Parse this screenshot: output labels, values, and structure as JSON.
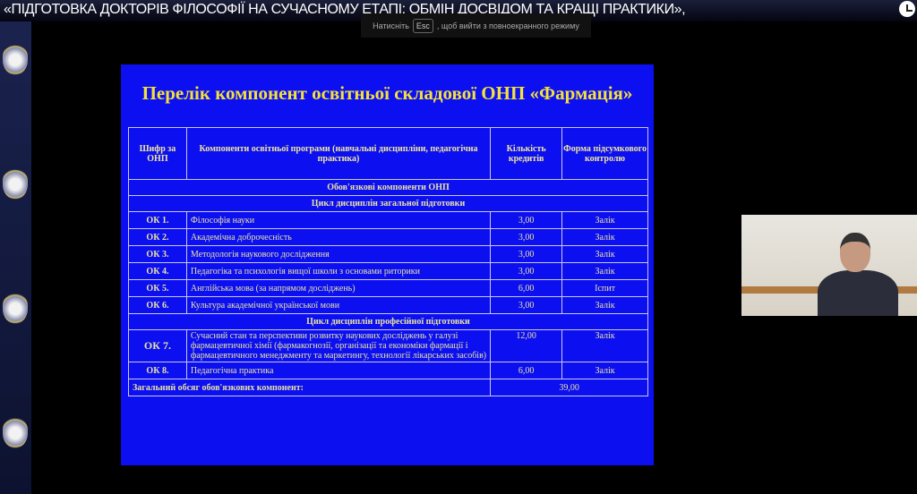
{
  "window": {
    "title": "«ПІДГОТОВКА ДОКТОРІВ ФІЛОСОФІЇ НА СУЧАСНОМУ ЕТАПІ: ОБМІН ДОСВІДОМ ТА КРАЩІ ПРАКТИКИ»,",
    "esc_hint": {
      "before": "Натисніть",
      "key": "Esc",
      "after": ", щоб вийти з повноекранного режиму"
    }
  },
  "slide": {
    "title": "Перелік компонент освітньої складової ОНП «Фармація»",
    "headers": [
      "Шифр за ОНП",
      "Компоненти освітньої програми (навчальні дисципліни, педагогічна практика)",
      "Кількість кредитів",
      "Форма підсумкового контролю"
    ],
    "section_main": "Обов'язкові компоненти ОНП",
    "cycle_general": "Цикл дисциплін загальної підготовки",
    "cycle_professional": "Цикл дисциплін професійної підготовки",
    "rows": [
      {
        "code": "ОК 1.",
        "name": "Філософія науки",
        "credits": "3,00",
        "control": "Залік"
      },
      {
        "code": "ОК 2.",
        "name": "Академічна доброчесність",
        "credits": "3,00",
        "control": "Залік"
      },
      {
        "code": "ОК 3.",
        "name": "Методологія наукового дослідження",
        "credits": "3,00",
        "control": "Залік"
      },
      {
        "code": "ОК 4.",
        "name": "Педагогіка та психологія вищої школи з основами риторики",
        "credits": "3,00",
        "control": "Залік"
      },
      {
        "code": "ОК 5.",
        "name": "Англійська мова (за напрямом досліджень)",
        "credits": "6,00",
        "control": "Іспит"
      },
      {
        "code": "ОК 6.",
        "name": "Культура академічної української мови",
        "credits": "3,00",
        "control": "Залік"
      },
      {
        "code": "ОК 7.",
        "name": "Сучасний стан та перспективи розвитку наукових досліджень у галузі фармацевтичної хімії (фармакогнозії, організації та економіки фармації і фармацевтичного менеджменту та маркетингу, технології лікарських засобів)",
        "credits": "12,00",
        "control": "Залік"
      },
      {
        "code": "ОК 8.",
        "name": "Педагогічна практика",
        "credits": "6,00",
        "control": "Залік"
      }
    ],
    "total_label": "Загальний обсяг обов'язкових компонент:",
    "total_value": "39,00"
  }
}
